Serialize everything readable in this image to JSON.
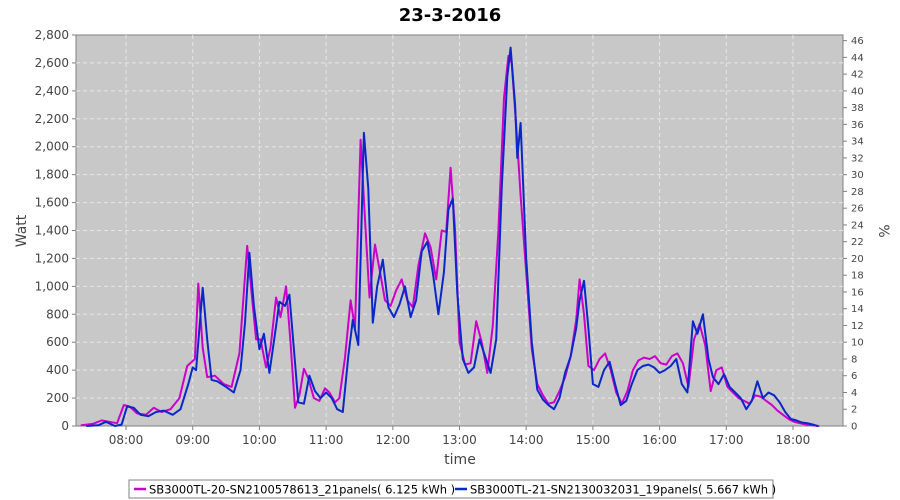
{
  "chart_data": {
    "type": "line",
    "title": "23-3-2016",
    "xlabel": "time",
    "ylabel": "Watt",
    "y2label": "%",
    "x_range": [
      "07:15",
      "18:45"
    ],
    "x_ticks": [
      "08:00",
      "09:00",
      "10:00",
      "11:00",
      "12:00",
      "13:00",
      "14:00",
      "15:00",
      "16:00",
      "17:00",
      "18:00"
    ],
    "ylim": [
      0,
      2800
    ],
    "y_ticks": [
      "0",
      "200",
      "400",
      "600",
      "800",
      "1,000",
      "1,200",
      "1,400",
      "1,600",
      "1,800",
      "2,000",
      "2,200",
      "2,400",
      "2,600",
      "2,800"
    ],
    "y2lim": [
      0,
      46.67
    ],
    "y2_ticks": [
      "0",
      "2",
      "4",
      "6",
      "8",
      "10",
      "12",
      "14",
      "16",
      "18",
      "20",
      "22",
      "24",
      "26",
      "28",
      "30",
      "32",
      "34",
      "36",
      "38",
      "40",
      "42",
      "44",
      "46"
    ],
    "grid": true,
    "legend_position": "bottom",
    "colors": {
      "plot_bg": "#c8c8c8",
      "grid": "#e6e6e6",
      "outline": "#808080"
    },
    "series": [
      {
        "name": "SB3000TL-20-SN2100578613_21panels( 6.125 kWh )",
        "color": "#cc00cc",
        "points": [
          [
            "07:20",
            5
          ],
          [
            "07:30",
            15
          ],
          [
            "07:38",
            40
          ],
          [
            "07:45",
            30
          ],
          [
            "07:52",
            20
          ],
          [
            "07:58",
            150
          ],
          [
            "08:03",
            140
          ],
          [
            "08:10",
            90
          ],
          [
            "08:18",
            80
          ],
          [
            "08:25",
            130
          ],
          [
            "08:32",
            100
          ],
          [
            "08:40",
            120
          ],
          [
            "08:48",
            200
          ],
          [
            "08:55",
            430
          ],
          [
            "09:02",
            480
          ],
          [
            "09:05",
            1020
          ],
          [
            "09:09",
            560
          ],
          [
            "09:13",
            350
          ],
          [
            "09:20",
            360
          ],
          [
            "09:28",
            300
          ],
          [
            "09:35",
            280
          ],
          [
            "09:42",
            520
          ],
          [
            "09:49",
            1290
          ],
          [
            "09:53",
            950
          ],
          [
            "09:57",
            620
          ],
          [
            "10:01",
            620
          ],
          [
            "10:06",
            420
          ],
          [
            "10:10",
            560
          ],
          [
            "10:15",
            920
          ],
          [
            "10:19",
            780
          ],
          [
            "10:24",
            1000
          ],
          [
            "10:28",
            600
          ],
          [
            "10:32",
            130
          ],
          [
            "10:36",
            220
          ],
          [
            "10:40",
            410
          ],
          [
            "10:44",
            340
          ],
          [
            "10:49",
            200
          ],
          [
            "10:54",
            180
          ],
          [
            "10:59",
            270
          ],
          [
            "11:03",
            240
          ],
          [
            "11:08",
            170
          ],
          [
            "11:12",
            200
          ],
          [
            "11:17",
            490
          ],
          [
            "11:22",
            900
          ],
          [
            "11:26",
            700
          ],
          [
            "11:31",
            2050
          ],
          [
            "11:35",
            1480
          ],
          [
            "11:39",
            920
          ],
          [
            "11:44",
            1300
          ],
          [
            "11:49",
            1080
          ],
          [
            "11:53",
            900
          ],
          [
            "11:58",
            860
          ],
          [
            "12:03",
            970
          ],
          [
            "12:08",
            1050
          ],
          [
            "12:13",
            900
          ],
          [
            "12:18",
            850
          ],
          [
            "12:23",
            1150
          ],
          [
            "12:29",
            1380
          ],
          [
            "12:34",
            1280
          ],
          [
            "12:39",
            1050
          ],
          [
            "12:44",
            1400
          ],
          [
            "12:48",
            1390
          ],
          [
            "12:52",
            1850
          ],
          [
            "12:56",
            1400
          ],
          [
            "13:00",
            600
          ],
          [
            "13:05",
            440
          ],
          [
            "13:10",
            450
          ],
          [
            "13:15",
            750
          ],
          [
            "13:20",
            600
          ],
          [
            "13:25",
            380
          ],
          [
            "13:30",
            720
          ],
          [
            "13:35",
            1400
          ],
          [
            "13:40",
            2350
          ],
          [
            "13:44",
            2650
          ],
          [
            "13:47",
            2600
          ],
          [
            "13:51",
            2150
          ],
          [
            "13:55",
            1650
          ],
          [
            "14:00",
            1100
          ],
          [
            "14:05",
            550
          ],
          [
            "14:10",
            300
          ],
          [
            "14:15",
            220
          ],
          [
            "14:20",
            160
          ],
          [
            "14:25",
            170
          ],
          [
            "14:30",
            250
          ],
          [
            "14:35",
            350
          ],
          [
            "14:40",
            500
          ],
          [
            "14:45",
            760
          ],
          [
            "14:48",
            1050
          ],
          [
            "14:52",
            800
          ],
          [
            "14:56",
            430
          ],
          [
            "15:01",
            400
          ],
          [
            "15:06",
            480
          ],
          [
            "15:11",
            520
          ],
          [
            "15:16",
            400
          ],
          [
            "15:21",
            240
          ],
          [
            "15:26",
            160
          ],
          [
            "15:31",
            250
          ],
          [
            "15:36",
            400
          ],
          [
            "15:41",
            470
          ],
          [
            "15:46",
            490
          ],
          [
            "15:51",
            480
          ],
          [
            "15:56",
            500
          ],
          [
            "16:01",
            450
          ],
          [
            "16:06",
            440
          ],
          [
            "16:11",
            500
          ],
          [
            "16:16",
            520
          ],
          [
            "16:21",
            450
          ],
          [
            "16:26",
            280
          ],
          [
            "16:31",
            620
          ],
          [
            "16:36",
            730
          ],
          [
            "16:41",
            580
          ],
          [
            "16:46",
            250
          ],
          [
            "16:51",
            400
          ],
          [
            "16:56",
            420
          ],
          [
            "17:01",
            280
          ],
          [
            "17:06",
            240
          ],
          [
            "17:11",
            200
          ],
          [
            "17:16",
            180
          ],
          [
            "17:21",
            160
          ],
          [
            "17:26",
            220
          ],
          [
            "17:31",
            210
          ],
          [
            "17:36",
            180
          ],
          [
            "17:41",
            150
          ],
          [
            "17:46",
            110
          ],
          [
            "17:51",
            80
          ],
          [
            "17:56",
            50
          ],
          [
            "18:01",
            30
          ],
          [
            "18:06",
            20
          ],
          [
            "18:12",
            10
          ],
          [
            "18:18",
            5
          ],
          [
            "18:23",
            0
          ]
        ]
      },
      {
        "name": "SB3000TL-21-SN2130032031_19panels( 5.667 kWh )",
        "color": "#0a28c8",
        "points": [
          [
            "07:25",
            0
          ],
          [
            "07:35",
            5
          ],
          [
            "07:42",
            30
          ],
          [
            "07:50",
            0
          ],
          [
            "07:56",
            10
          ],
          [
            "08:01",
            140
          ],
          [
            "08:07",
            130
          ],
          [
            "08:13",
            80
          ],
          [
            "08:20",
            70
          ],
          [
            "08:27",
            100
          ],
          [
            "08:34",
            110
          ],
          [
            "08:42",
            80
          ],
          [
            "08:49",
            120
          ],
          [
            "08:56",
            300
          ],
          [
            "09:00",
            420
          ],
          [
            "09:03",
            400
          ],
          [
            "09:06",
            700
          ],
          [
            "09:09",
            990
          ],
          [
            "09:13",
            620
          ],
          [
            "09:17",
            330
          ],
          [
            "09:22",
            320
          ],
          [
            "09:30",
            280
          ],
          [
            "09:37",
            240
          ],
          [
            "09:43",
            400
          ],
          [
            "09:47",
            740
          ],
          [
            "09:51",
            1240
          ],
          [
            "09:55",
            860
          ],
          [
            "10:00",
            550
          ],
          [
            "10:04",
            660
          ],
          [
            "10:09",
            380
          ],
          [
            "10:14",
            660
          ],
          [
            "10:18",
            890
          ],
          [
            "10:23",
            860
          ],
          [
            "10:27",
            940
          ],
          [
            "10:31",
            550
          ],
          [
            "10:35",
            170
          ],
          [
            "10:40",
            160
          ],
          [
            "10:45",
            360
          ],
          [
            "10:50",
            250
          ],
          [
            "10:55",
            200
          ],
          [
            "11:00",
            240
          ],
          [
            "11:05",
            200
          ],
          [
            "11:10",
            120
          ],
          [
            "11:15",
            100
          ],
          [
            "11:20",
            500
          ],
          [
            "11:24",
            760
          ],
          [
            "11:29",
            580
          ],
          [
            "11:34",
            2100
          ],
          [
            "11:38",
            1700
          ],
          [
            "11:42",
            740
          ],
          [
            "11:46",
            1000
          ],
          [
            "11:51",
            1190
          ],
          [
            "11:56",
            850
          ],
          [
            "12:01",
            780
          ],
          [
            "12:06",
            870
          ],
          [
            "12:11",
            1000
          ],
          [
            "12:16",
            780
          ],
          [
            "12:21",
            900
          ],
          [
            "12:26",
            1250
          ],
          [
            "12:31",
            1320
          ],
          [
            "12:36",
            1100
          ],
          [
            "12:41",
            800
          ],
          [
            "12:46",
            1100
          ],
          [
            "12:50",
            1550
          ],
          [
            "12:54",
            1630
          ],
          [
            "12:58",
            950
          ],
          [
            "13:03",
            480
          ],
          [
            "13:08",
            380
          ],
          [
            "13:13",
            420
          ],
          [
            "13:18",
            620
          ],
          [
            "13:23",
            500
          ],
          [
            "13:28",
            380
          ],
          [
            "13:33",
            620
          ],
          [
            "13:38",
            1700
          ],
          [
            "13:43",
            2500
          ],
          [
            "13:46",
            2710
          ],
          [
            "13:50",
            2300
          ],
          [
            "13:52",
            1920
          ],
          [
            "13:55",
            2170
          ],
          [
            "14:00",
            1200
          ],
          [
            "14:05",
            600
          ],
          [
            "14:10",
            260
          ],
          [
            "14:15",
            190
          ],
          [
            "14:20",
            150
          ],
          [
            "14:25",
            120
          ],
          [
            "14:30",
            200
          ],
          [
            "14:35",
            380
          ],
          [
            "14:40",
            500
          ],
          [
            "14:45",
            700
          ],
          [
            "14:48",
            900
          ],
          [
            "14:52",
            1040
          ],
          [
            "14:56",
            700
          ],
          [
            "15:00",
            300
          ],
          [
            "15:05",
            280
          ],
          [
            "15:10",
            400
          ],
          [
            "15:15",
            460
          ],
          [
            "15:20",
            300
          ],
          [
            "15:25",
            150
          ],
          [
            "15:30",
            180
          ],
          [
            "15:35",
            300
          ],
          [
            "15:40",
            400
          ],
          [
            "15:45",
            430
          ],
          [
            "15:50",
            440
          ],
          [
            "15:55",
            420
          ],
          [
            "16:00",
            380
          ],
          [
            "16:05",
            400
          ],
          [
            "16:10",
            430
          ],
          [
            "16:15",
            480
          ],
          [
            "16:20",
            300
          ],
          [
            "16:25",
            240
          ],
          [
            "16:30",
            750
          ],
          [
            "16:34",
            660
          ],
          [
            "16:39",
            800
          ],
          [
            "16:44",
            480
          ],
          [
            "16:48",
            350
          ],
          [
            "16:53",
            300
          ],
          [
            "16:58",
            370
          ],
          [
            "17:03",
            280
          ],
          [
            "17:08",
            240
          ],
          [
            "17:13",
            200
          ],
          [
            "17:18",
            120
          ],
          [
            "17:23",
            180
          ],
          [
            "17:28",
            320
          ],
          [
            "17:33",
            200
          ],
          [
            "17:38",
            240
          ],
          [
            "17:43",
            220
          ],
          [
            "17:48",
            170
          ],
          [
            "17:53",
            100
          ],
          [
            "17:58",
            50
          ],
          [
            "18:03",
            40
          ],
          [
            "18:08",
            25
          ],
          [
            "18:13",
            20
          ],
          [
            "18:18",
            10
          ],
          [
            "18:22",
            0
          ]
        ]
      }
    ]
  }
}
